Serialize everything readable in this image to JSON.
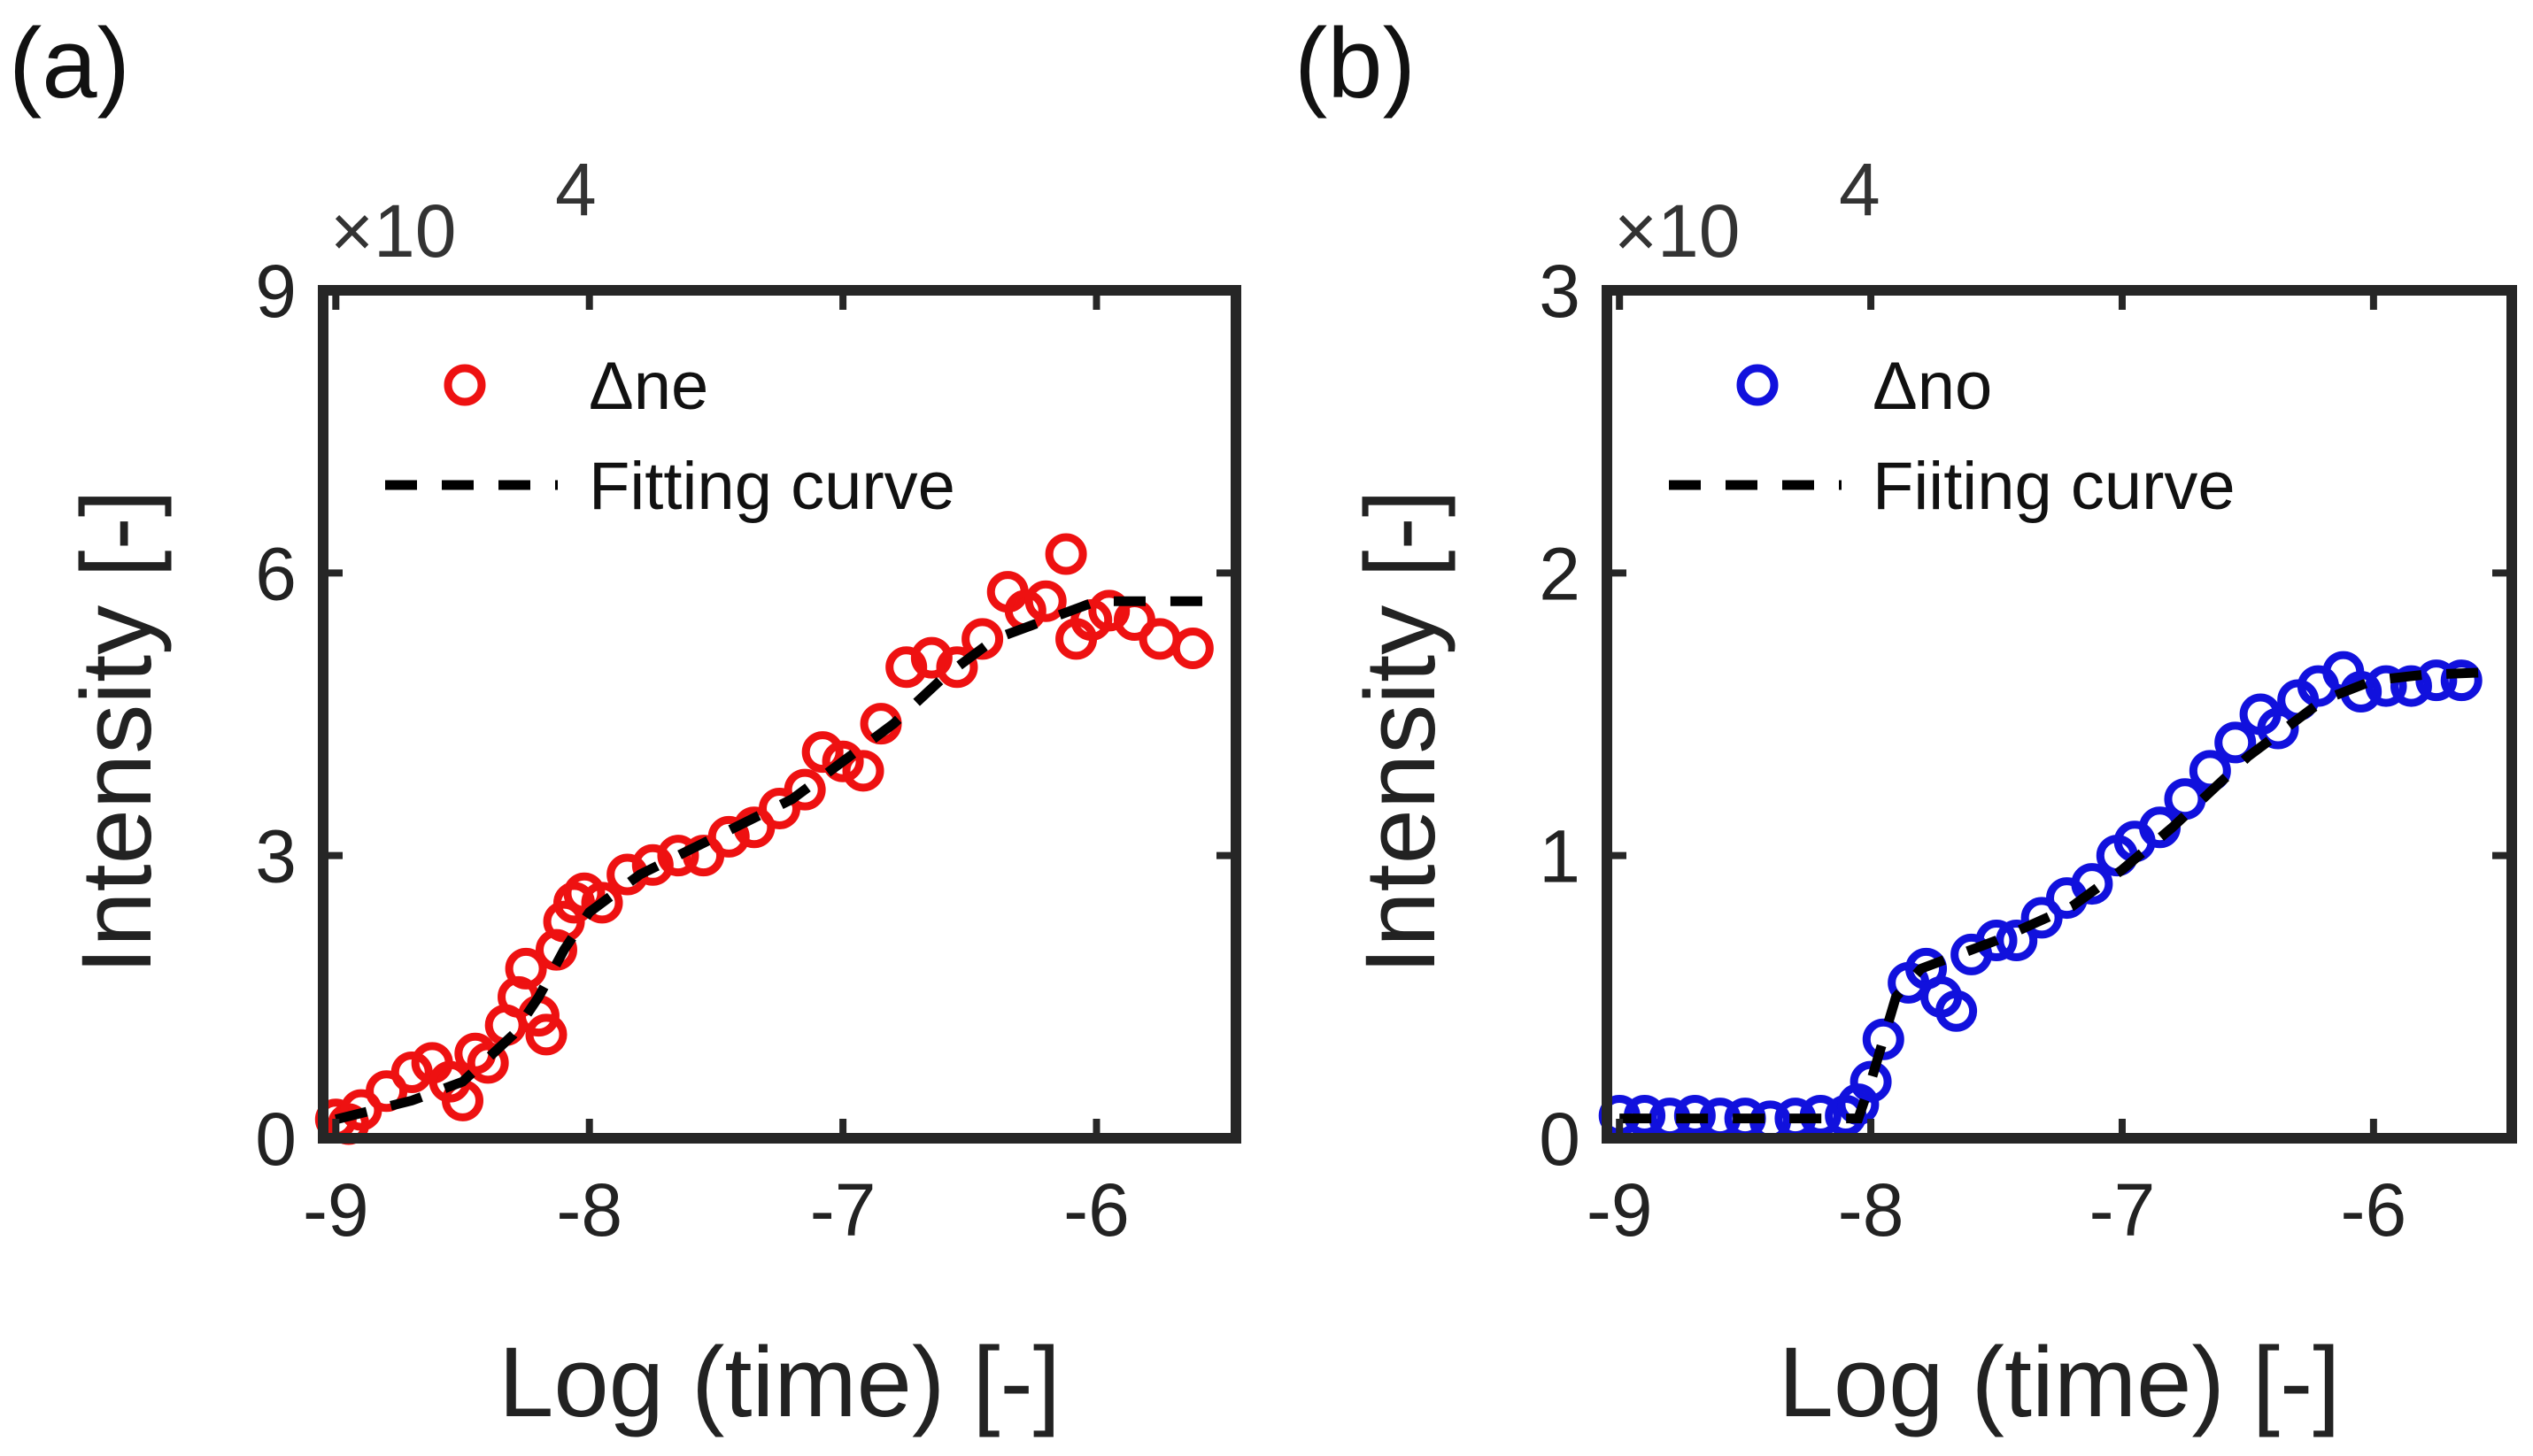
{
  "chart_data": [
    {
      "type": "scatter",
      "panel_label": "(a)",
      "xlabel": "Log (time) [-]",
      "ylabel": "Intensity [-]",
      "y_multiplier": "×10",
      "y_multiplier_exp": "4",
      "xlim": [
        -9.05,
        -5.45
      ],
      "ylim": [
        0,
        9
      ],
      "xticks": [
        -9,
        -8,
        -7,
        -6
      ],
      "xtick_labels": [
        "-9",
        "-8",
        "-7",
        "-6"
      ],
      "yticks": [
        0,
        3,
        6,
        9
      ],
      "ytick_labels": [
        "0",
        "3",
        "6",
        "9"
      ],
      "legend_position": "top-left",
      "series": [
        {
          "name": "Δne",
          "kind": "markers",
          "color": "#ee1111",
          "x": [
            -9.0,
            -8.95,
            -8.9,
            -8.8,
            -8.7,
            -8.62,
            -8.55,
            -8.5,
            -8.45,
            -8.4,
            -8.33,
            -8.28,
            -8.25,
            -8.2,
            -8.17,
            -8.13,
            -8.1,
            -8.06,
            -8.02,
            -7.95,
            -7.85,
            -7.75,
            -7.65,
            -7.55,
            -7.45,
            -7.35,
            -7.25,
            -7.15,
            -7.08,
            -7.0,
            -6.92,
            -6.85,
            -6.75,
            -6.65,
            -6.55,
            -6.45,
            -6.35,
            -6.28,
            -6.2,
            -6.12,
            -6.08,
            -6.02,
            -5.95,
            -5.85,
            -5.75,
            -5.62
          ],
          "y": [
            0.2,
            0.15,
            0.3,
            0.5,
            0.7,
            0.8,
            0.6,
            0.4,
            0.9,
            0.8,
            1.2,
            1.5,
            1.8,
            1.3,
            1.1,
            2.0,
            2.3,
            2.5,
            2.6,
            2.5,
            2.8,
            2.9,
            3.0,
            3.0,
            3.2,
            3.3,
            3.5,
            3.7,
            4.1,
            4.0,
            3.9,
            4.4,
            5.0,
            5.1,
            5.0,
            5.3,
            5.8,
            5.6,
            5.7,
            6.2,
            5.3,
            5.5,
            5.6,
            5.5,
            5.3,
            5.2
          ]
        },
        {
          "name": "Fitting curve",
          "kind": "dashed-line",
          "color": "#000000",
          "x": [
            -9.0,
            -8.7,
            -8.5,
            -8.3,
            -8.2,
            -8.1,
            -8.0,
            -7.9,
            -7.8,
            -7.5,
            -7.2,
            -7.0,
            -6.8,
            -6.6,
            -6.4,
            -6.2,
            -6.0,
            -5.8,
            -5.5
          ],
          "y": [
            0.2,
            0.4,
            0.6,
            1.1,
            1.5,
            2.0,
            2.4,
            2.6,
            2.8,
            3.2,
            3.6,
            4.0,
            4.4,
            4.9,
            5.3,
            5.5,
            5.7,
            5.7,
            5.7
          ]
        }
      ]
    },
    {
      "type": "scatter",
      "panel_label": "(b)",
      "xlabel": "Log (time) [-]",
      "ylabel": "Intensity [-]",
      "y_multiplier": "×10",
      "y_multiplier_exp": "4",
      "xlim": [
        -9.05,
        -5.45
      ],
      "ylim": [
        0,
        3
      ],
      "xticks": [
        -9,
        -8,
        -7,
        -6
      ],
      "xtick_labels": [
        "-9",
        "-8",
        "-7",
        "-6"
      ],
      "yticks": [
        0,
        1,
        2,
        3
      ],
      "ytick_labels": [
        "0",
        "1",
        "2",
        "3"
      ],
      "legend_position": "top-left",
      "series": [
        {
          "name": "Δno",
          "kind": "markers",
          "color": "#1111dd",
          "x": [
            -9.0,
            -8.9,
            -8.8,
            -8.7,
            -8.6,
            -8.5,
            -8.4,
            -8.3,
            -8.2,
            -8.1,
            -8.05,
            -8.0,
            -7.95,
            -7.85,
            -7.78,
            -7.72,
            -7.66,
            -7.6,
            -7.5,
            -7.42,
            -7.32,
            -7.22,
            -7.12,
            -7.02,
            -6.95,
            -6.85,
            -6.75,
            -6.65,
            -6.55,
            -6.45,
            -6.38,
            -6.3,
            -6.22,
            -6.12,
            -6.05,
            -5.95,
            -5.85,
            -5.75,
            -5.65
          ],
          "y": [
            0.08,
            0.08,
            0.07,
            0.08,
            0.07,
            0.07,
            0.06,
            0.07,
            0.08,
            0.08,
            0.12,
            0.2,
            0.35,
            0.55,
            0.6,
            0.5,
            0.45,
            0.65,
            0.7,
            0.7,
            0.78,
            0.85,
            0.9,
            1.0,
            1.05,
            1.1,
            1.2,
            1.3,
            1.4,
            1.5,
            1.45,
            1.55,
            1.6,
            1.65,
            1.58,
            1.6,
            1.6,
            1.62,
            1.62
          ]
        },
        {
          "name": "Fiiting curve",
          "kind": "dashed-line",
          "color": "#000000",
          "x": [
            -9.0,
            -8.5,
            -8.05,
            -8.0,
            -7.9,
            -7.8,
            -7.5,
            -7.2,
            -7.0,
            -6.8,
            -6.5,
            -6.2,
            -6.0,
            -5.8,
            -5.5
          ],
          "y": [
            0.07,
            0.07,
            0.07,
            0.2,
            0.5,
            0.6,
            0.7,
            0.82,
            0.95,
            1.1,
            1.35,
            1.55,
            1.62,
            1.64,
            1.65
          ]
        }
      ]
    }
  ]
}
